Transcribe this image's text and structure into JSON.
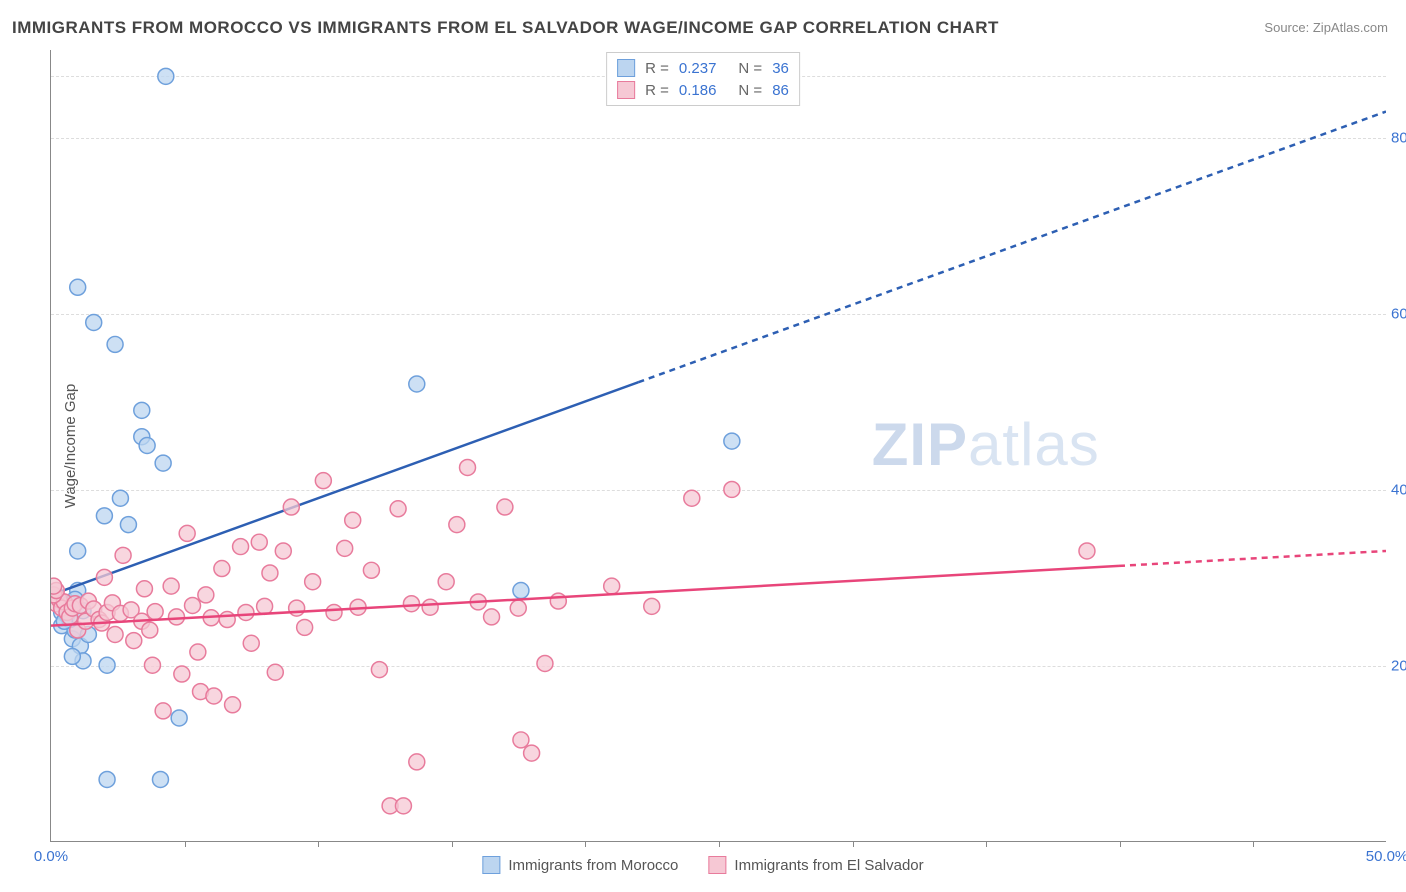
{
  "title": "IMMIGRANTS FROM MOROCCO VS IMMIGRANTS FROM EL SALVADOR WAGE/INCOME GAP CORRELATION CHART",
  "source_label": "Source:",
  "source_name": "ZipAtlas.com",
  "ylabel": "Wage/Income Gap",
  "watermark": "ZIPatlas",
  "chart": {
    "type": "scatter-with-regression",
    "background_color": "#ffffff",
    "grid_color": "#e0e0e0",
    "axis_color": "#888888",
    "tick_label_color": "#3a73d1",
    "xlim": [
      0,
      50
    ],
    "ylim": [
      0,
      90
    ],
    "x_ticks": [
      0,
      50
    ],
    "x_tick_labels": [
      "0.0%",
      "50.0%"
    ],
    "x_minor_ticks": [
      5,
      10,
      15,
      20,
      25,
      30,
      35,
      40,
      45
    ],
    "y_ticks": [
      20,
      40,
      60,
      80
    ],
    "y_tick_labels": [
      "20.0%",
      "40.0%",
      "60.0%",
      "80.0%"
    ],
    "series": [
      {
        "key": "morocco",
        "label": "Immigrants from Morocco",
        "color_fill": "#bcd5f0",
        "color_stroke": "#6ea0dc",
        "marker_radius": 8,
        "marker_opacity": 0.75,
        "r_value": "0.237",
        "n_value": "36",
        "regression": {
          "x1": 0,
          "y1": 28,
          "x2": 50,
          "y2": 83,
          "solid_until_x": 22,
          "line_color": "#2d5fb3",
          "line_width": 2.5,
          "dash": "6 5"
        },
        "points": [
          [
            0.4,
            26
          ],
          [
            0.4,
            24.5
          ],
          [
            0.5,
            27
          ],
          [
            0.6,
            25.7
          ],
          [
            0.7,
            26.2
          ],
          [
            0.8,
            23
          ],
          [
            0.9,
            24
          ],
          [
            1.0,
            33
          ],
          [
            1.0,
            28.5
          ],
          [
            1.1,
            22.2
          ],
          [
            1.2,
            20.5
          ],
          [
            0.8,
            21
          ],
          [
            1.4,
            23.5
          ],
          [
            1.0,
            63
          ],
          [
            1.6,
            59
          ],
          [
            2.1,
            20
          ],
          [
            2.1,
            7
          ],
          [
            2.4,
            56.5
          ],
          [
            2.6,
            39
          ],
          [
            2.9,
            36
          ],
          [
            3.4,
            46
          ],
          [
            3.4,
            49
          ],
          [
            3.6,
            45
          ],
          [
            4.1,
            7
          ],
          [
            4.2,
            43
          ],
          [
            4.3,
            87
          ],
          [
            4.8,
            14
          ],
          [
            13.7,
            52
          ],
          [
            17.6,
            28.5
          ],
          [
            0.6,
            26.8
          ],
          [
            0.7,
            25.2
          ],
          [
            1.2,
            26.2
          ],
          [
            0.5,
            25
          ],
          [
            0.9,
            27.5
          ],
          [
            25.5,
            45.5
          ],
          [
            2.0,
            37
          ]
        ]
      },
      {
        "key": "elsalvador",
        "label": "Immigrants from El Salvador",
        "color_fill": "#f6c8d4",
        "color_stroke": "#e87b9c",
        "marker_radius": 8,
        "marker_opacity": 0.75,
        "r_value": "0.186",
        "n_value": "86",
        "regression": {
          "x1": 0,
          "y1": 24.5,
          "x2": 50,
          "y2": 33,
          "solid_until_x": 40,
          "line_color": "#e8457a",
          "line_width": 2.5,
          "dash": "6 5"
        },
        "points": [
          [
            0.2,
            27
          ],
          [
            0.3,
            27.5
          ],
          [
            0.4,
            26.5
          ],
          [
            0.5,
            27.2
          ],
          [
            0.6,
            26
          ],
          [
            0.7,
            25.5
          ],
          [
            0.8,
            26.5
          ],
          [
            0.9,
            27
          ],
          [
            1.0,
            24
          ],
          [
            1.1,
            26.8
          ],
          [
            1.3,
            25
          ],
          [
            1.4,
            27.3
          ],
          [
            1.6,
            26.4
          ],
          [
            1.8,
            25.2
          ],
          [
            1.9,
            24.8
          ],
          [
            2.0,
            30
          ],
          [
            2.1,
            26
          ],
          [
            2.3,
            27.1
          ],
          [
            2.4,
            23.5
          ],
          [
            2.6,
            25.9
          ],
          [
            2.7,
            32.5
          ],
          [
            3.0,
            26.3
          ],
          [
            3.1,
            22.8
          ],
          [
            3.4,
            25
          ],
          [
            3.5,
            28.7
          ],
          [
            3.7,
            24
          ],
          [
            3.8,
            20
          ],
          [
            3.9,
            26.1
          ],
          [
            4.2,
            14.8
          ],
          [
            4.5,
            29
          ],
          [
            4.7,
            25.5
          ],
          [
            4.9,
            19
          ],
          [
            5.1,
            35
          ],
          [
            5.3,
            26.8
          ],
          [
            5.5,
            21.5
          ],
          [
            5.6,
            17
          ],
          [
            5.8,
            28
          ],
          [
            6.0,
            25.4
          ],
          [
            6.1,
            16.5
          ],
          [
            6.4,
            31
          ],
          [
            6.6,
            25.2
          ],
          [
            6.8,
            15.5
          ],
          [
            7.1,
            33.5
          ],
          [
            7.3,
            26
          ],
          [
            7.5,
            22.5
          ],
          [
            7.8,
            34
          ],
          [
            8.0,
            26.7
          ],
          [
            8.2,
            30.5
          ],
          [
            8.4,
            19.2
          ],
          [
            8.7,
            33
          ],
          [
            9.0,
            38
          ],
          [
            9.2,
            26.5
          ],
          [
            9.5,
            24.3
          ],
          [
            9.8,
            29.5
          ],
          [
            10.2,
            41
          ],
          [
            10.6,
            26
          ],
          [
            11.0,
            33.3
          ],
          [
            11.3,
            36.5
          ],
          [
            11.5,
            26.6
          ],
          [
            12.0,
            30.8
          ],
          [
            12.3,
            19.5
          ],
          [
            12.7,
            4
          ],
          [
            13.0,
            37.8
          ],
          [
            13.5,
            27
          ],
          [
            13.7,
            9
          ],
          [
            14.2,
            26.6
          ],
          [
            14.8,
            29.5
          ],
          [
            15.2,
            36
          ],
          [
            15.6,
            42.5
          ],
          [
            16.0,
            27.2
          ],
          [
            16.5,
            25.5
          ],
          [
            17.0,
            38
          ],
          [
            17.5,
            26.5
          ],
          [
            18.0,
            10
          ],
          [
            18.5,
            20.2
          ],
          [
            19.0,
            27.3
          ],
          [
            21.0,
            29
          ],
          [
            22.5,
            26.7
          ],
          [
            24.0,
            39
          ],
          [
            25.5,
            40
          ],
          [
            13.2,
            4
          ],
          [
            17.6,
            11.5
          ],
          [
            38.8,
            33
          ],
          [
            0.1,
            28
          ],
          [
            0.2,
            28.5
          ],
          [
            0.1,
            29
          ]
        ]
      }
    ]
  },
  "legend_top_labels": {
    "R": "R =",
    "N": "N ="
  },
  "legend_bottom_series_order": [
    "morocco",
    "elsalvador"
  ]
}
